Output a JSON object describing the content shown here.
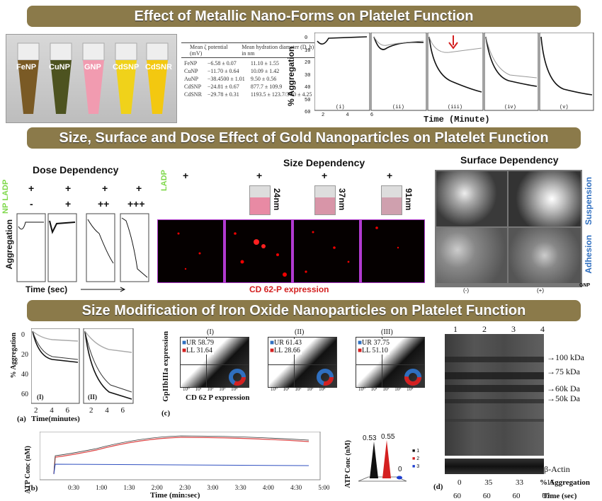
{
  "banners": {
    "b1": "Effect of Metallic Nano-Forms on Platelet Function",
    "b2": "Size, Surface and Dose Effect of Gold Nanoparticles on Platelet Function",
    "b3": "Size Modification of Iron Oxide Nanoparticles on Platelet Function"
  },
  "tubes": [
    "FeNP",
    "CuNP",
    "GNP",
    "CdSNP",
    "CdSNR"
  ],
  "zeta_table": {
    "headers": [
      "",
      "Mean ζ potential (mV)",
      "Mean hydration diameter (D_h) in nm"
    ],
    "rows": [
      [
        "FeNP",
        "−6.58 ± 0.07",
        "11.10 ± 1.55"
      ],
      [
        "CuNP",
        "−11.70 ± 0.64",
        "10.09 ± 1.42"
      ],
      [
        "AuNP",
        "−38.4500 ± 1.01",
        "9.50 ± 0.56"
      ],
      [
        "CdSNP",
        "−24.81 ± 0.67",
        "877.7 ± 109.9"
      ],
      [
        "CdSNR",
        "−29.78 ± 0.31",
        "1193.5 ± 123.7/34.0 ± 4.25"
      ]
    ]
  },
  "agg_top": {
    "ylabel": "% Aggregation",
    "xlabel": "Time (Minute)",
    "yticks": [
      "0",
      "10",
      "20",
      "30",
      "40",
      "50",
      "60"
    ],
    "panels": [
      "(i)",
      "(ii)",
      "(iii)",
      "(iv)",
      "(v)"
    ],
    "xticks": [
      "2",
      "4",
      "6"
    ]
  },
  "dose": {
    "title": "Dose Dependency",
    "row_labels": [
      "NP",
      "LADP"
    ],
    "ladp_row": [
      "+",
      "+",
      "+",
      "+"
    ],
    "np_row": [
      "-",
      "+",
      "++",
      "+++"
    ],
    "ylabel": "Aggregation",
    "xlabel": "Time (sec)"
  },
  "size": {
    "title": "Size Dependency",
    "ladp_label": "LADP",
    "plus": [
      "+",
      "+",
      "+",
      "+"
    ],
    "sizes": [
      "24nm",
      "37nm",
      "91nm"
    ],
    "caption": "CD 62-P expression"
  },
  "surface": {
    "title": "Surface Dependency",
    "row_labels": [
      "Suspension",
      "Adhesion"
    ],
    "col_labels": [
      "(-)",
      "(+)"
    ],
    "gnp": "GNP"
  },
  "iron_agg": {
    "ylabel": "% Aggregation",
    "xlabel": "Time(minutes)",
    "yticks": [
      "0",
      "20",
      "40",
      "60"
    ],
    "xticks": [
      "2",
      "4",
      "6"
    ],
    "panels": [
      "(I)",
      "(II)"
    ],
    "tag": "(a)"
  },
  "flow": {
    "tag": "(c)",
    "ylabel": "GpIIbIIIa expression",
    "xlabel": "CD 62 P expression",
    "panels": [
      {
        "label": "(I)",
        "ur": "58.79",
        "ll": "31.64"
      },
      {
        "label": "(II)",
        "ur": "61.43",
        "ll": "28.66"
      },
      {
        "label": "(III)",
        "ur": "37.75",
        "ll": "51.10"
      }
    ],
    "ur": "UR",
    "ll": "LL",
    "axis_ticks": [
      "10⁰",
      "10¹",
      "10²",
      "10³",
      "10⁴"
    ]
  },
  "atp": {
    "tag": "(b)",
    "ylabel": "ATP Conc (nM)",
    "xlabel": "Time (min:sec)",
    "xticks": [
      "0:30",
      "1:00",
      "1:30",
      "2:00",
      "2:30",
      "3:00",
      "3:30",
      "4:00",
      "4:30",
      "5:00"
    ],
    "bar_ylabel": "ATP Conc (nM)",
    "bar_values": [
      "0.53",
      "0.55",
      "0"
    ],
    "legend": [
      "1",
      "2",
      "3"
    ]
  },
  "gel": {
    "lanes": [
      "1",
      "2",
      "3",
      "4"
    ],
    "markers": [
      "100 kDa",
      "75 kDa",
      "60k Da",
      "50k Da"
    ],
    "actin": "β-Actin",
    "tag": "(d)",
    "agg_values": [
      "0",
      "35",
      "33",
      "15"
    ],
    "agg_label": "% Aggregation",
    "time_values": [
      "60",
      "60",
      "60",
      "60"
    ],
    "time_label": "Time (sec)"
  },
  "colors": {
    "banner": "#8b7a4a",
    "red": "#d42020",
    "blue": "#2f6fc0",
    "green": "#7ed84a"
  }
}
